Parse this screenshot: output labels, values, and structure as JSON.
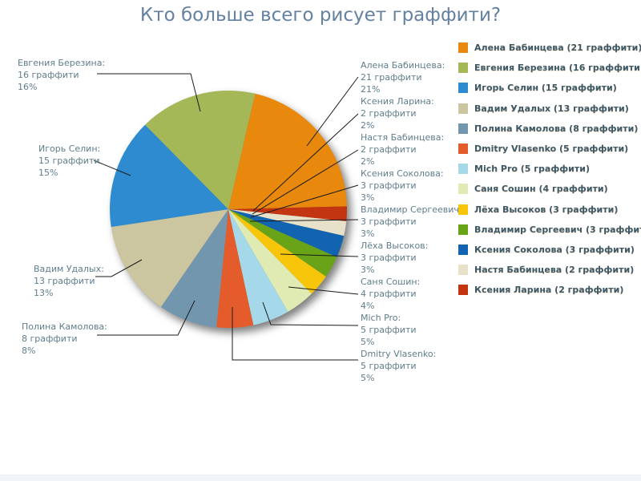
{
  "title": "Кто больше всего рисует граффити?",
  "colors": {
    "title_text": "#64819f",
    "callout_text": "#5f7d8c",
    "legend_text": "#3d5866",
    "callout_line": "#1a1a1a",
    "background": "#ffffff",
    "footer_bar": "#f3f6f9"
  },
  "chart_data": {
    "type": "pie",
    "title": "Кто больше всего рисует граффити?",
    "unit": "граффити",
    "total": 100,
    "start_angle_deg": 13,
    "direction": "clockwise",
    "legend_position": "right",
    "slices": [
      {
        "name": "Алена Бабинцева",
        "value": 21,
        "pct": "21%",
        "color": "#E8890D",
        "label_lines": [
          "Алена Бабинцева:",
          "21 граффити",
          "21%"
        ]
      },
      {
        "name": "Ксения Ларина",
        "value": 2,
        "pct": "2%",
        "color": "#C23510",
        "label_lines": [
          "Ксения Ларина:",
          "2 граффити",
          "2%"
        ]
      },
      {
        "name": "Настя Бабинцева",
        "value": 2,
        "pct": "2%",
        "color": "#E6E1C8",
        "label_lines": [
          "Настя Бабинцева:",
          "2 граффити",
          "2%"
        ]
      },
      {
        "name": "Ксения Соколова",
        "value": 3,
        "pct": "3%",
        "color": "#1264B0",
        "label_lines": [
          "Ксения Соколова:",
          "3 граффити",
          "3%"
        ]
      },
      {
        "name": "Владимир Сергеевич",
        "value": 3,
        "pct": "3%",
        "color": "#68A318",
        "label_lines": [
          "Владимир Сергеевич:",
          "3 граффити",
          "3%"
        ]
      },
      {
        "name": "Лёха Высоков",
        "value": 3,
        "pct": "3%",
        "color": "#F7C50A",
        "label_lines": [
          "Лёха Высоков:",
          "3 граффити",
          "3%"
        ]
      },
      {
        "name": "Саня Сошин",
        "value": 4,
        "pct": "4%",
        "color": "#DFEBB2",
        "label_lines": [
          "Саня Сошин:",
          "4 граффити",
          "4%"
        ]
      },
      {
        "name": "Mich Pro",
        "value": 5,
        "pct": "5%",
        "color": "#A5D9E9",
        "label_lines": [
          "Mich Pro:",
          "5 граффити",
          "5%"
        ]
      },
      {
        "name": "Dmitry Vlasenko",
        "value": 5,
        "pct": "5%",
        "color": "#E55C2C",
        "label_lines": [
          "Dmitry Vlasenko:",
          "5 граффити",
          "5%"
        ]
      },
      {
        "name": "Полина Камолова",
        "value": 8,
        "pct": "8%",
        "color": "#7396AF",
        "label_lines": [
          "Полина Камолова:",
          "8 граффити",
          "8%"
        ]
      },
      {
        "name": "Вадим Удалых",
        "value": 13,
        "pct": "13%",
        "color": "#CBC5A0",
        "label_lines": [
          "Вадим Удалых:",
          "13 граффити",
          "13%"
        ]
      },
      {
        "name": "Игорь Селин",
        "value": 15,
        "pct": "15%",
        "color": "#2E8BD0",
        "label_lines": [
          "Игорь Селин:",
          "15 граффити",
          "15%"
        ]
      },
      {
        "name": "Евгения Березина",
        "value": 16,
        "pct": "16%",
        "color": "#A4B857",
        "label_lines": [
          "Евгения Березина:",
          "16 граффити",
          "16%"
        ]
      }
    ],
    "legend": [
      {
        "label": "Алена Бабинцева (21 граффити)",
        "color": "#E8890D"
      },
      {
        "label": "Евгения Березина (16 граффити)",
        "color": "#A4B857"
      },
      {
        "label": "Игорь Селин (15 граффити)",
        "color": "#2E8BD0"
      },
      {
        "label": "Вадим Удалых (13 граффити)",
        "color": "#CBC5A0"
      },
      {
        "label": "Полина Камолова (8 граффити)",
        "color": "#7396AF"
      },
      {
        "label": "Dmitry Vlasenko (5 граффити)",
        "color": "#E55C2C"
      },
      {
        "label": "Mich Pro (5 граффити)",
        "color": "#A5D9E9"
      },
      {
        "label": "Саня Сошин (4 граффити)",
        "color": "#DFEBB2"
      },
      {
        "label": "Лёха Высоков (3 граффити)",
        "color": "#F7C50A"
      },
      {
        "label": "Владимир Сергеевич (3 граффити)",
        "color": "#68A318"
      },
      {
        "label": "Ксения Соколова (3 граффити)",
        "color": "#1264B0"
      },
      {
        "label": "Настя Бабинцева (2 граффити)",
        "color": "#E6E1C8"
      },
      {
        "label": "Ксения Ларина (2 граффити)",
        "color": "#C23510"
      }
    ]
  }
}
